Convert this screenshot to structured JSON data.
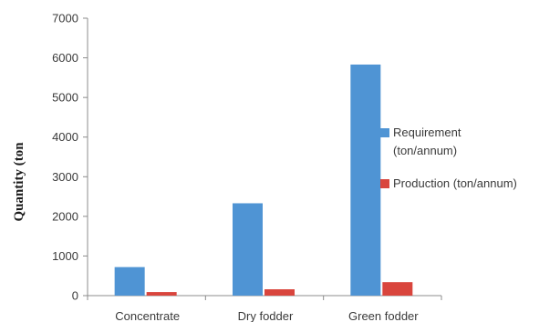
{
  "chart_data": {
    "type": "bar",
    "ylabel": "Quantity (ton",
    "ylim": [
      0,
      7000
    ],
    "yticks": [
      0,
      1000,
      2000,
      3000,
      4000,
      5000,
      6000,
      7000
    ],
    "categories": [
      "Concentrate",
      "Dry fodder",
      "Green fodder"
    ],
    "legend_position": "right",
    "series": [
      {
        "name": "Requirement (ton/annum)",
        "legend_lines": [
          "Requirement",
          "(ton/annum)"
        ],
        "color": "#4f94d4",
        "values": [
          720,
          2330,
          5830
        ]
      },
      {
        "name": "Production (ton/annum)",
        "legend_lines": [
          "Production (ton/annum)"
        ],
        "color": "#d9453d",
        "values": [
          90,
          160,
          340
        ]
      }
    ]
  }
}
